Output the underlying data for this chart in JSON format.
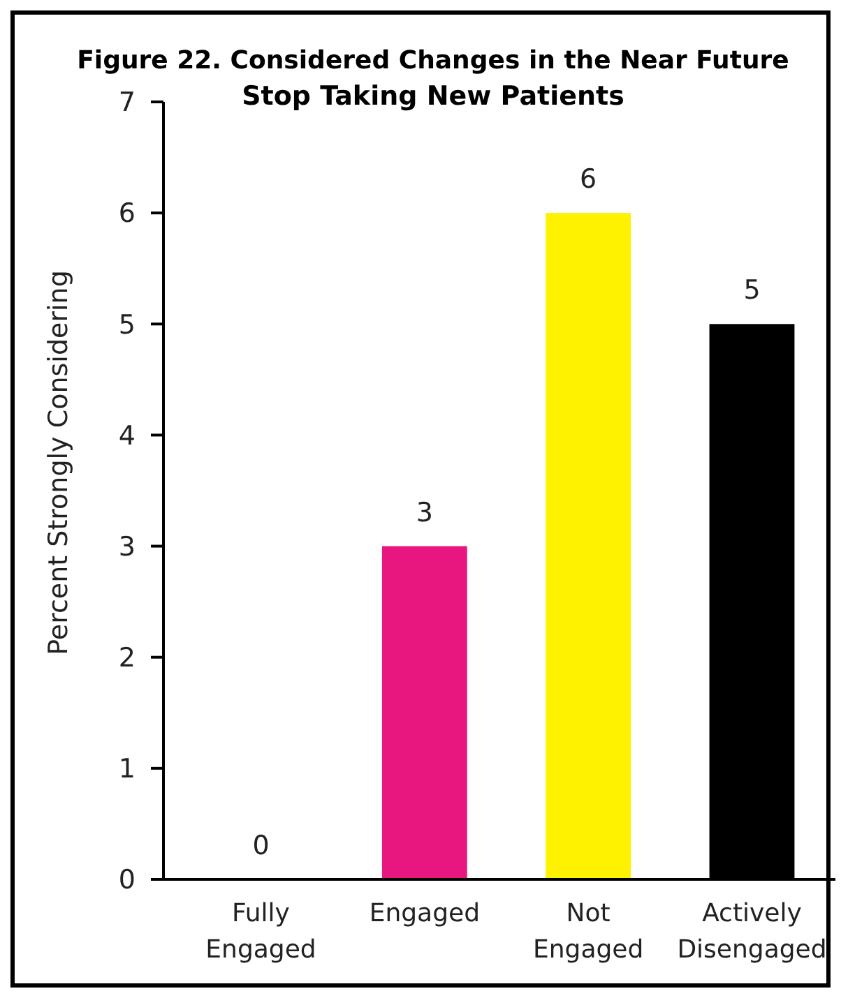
{
  "chart_data": {
    "type": "bar",
    "title": "Figure 22. Considered Changes in the Near Future",
    "subtitle": "Stop Taking New Patients",
    "ylabel": "Percent Strongly Considering",
    "categories": [
      "Fully Engaged",
      "Engaged",
      "Not Engaged",
      "Actively Disengaged"
    ],
    "values": [
      0,
      3,
      6,
      5
    ],
    "colors": [
      null,
      "#e8177f",
      "#fff200",
      "#000000"
    ],
    "ylim": [
      0,
      7
    ],
    "yticks": [
      0,
      1,
      2,
      3,
      4,
      5,
      6,
      7
    ],
    "data_labels": true,
    "grid": false
  }
}
